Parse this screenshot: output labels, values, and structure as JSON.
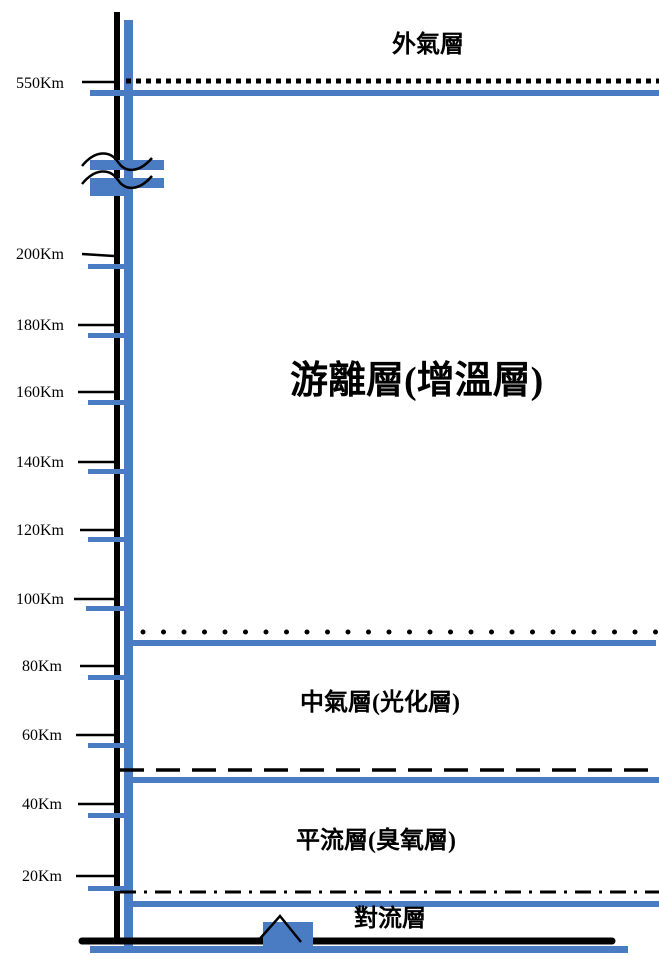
{
  "diagram": {
    "axis_labels": [
      "550Km",
      "200Km",
      "180Km",
      "160Km",
      "140Km",
      "120Km",
      "100Km",
      "80Km",
      "60Km",
      "40Km",
      "20Km"
    ],
    "layers": {
      "exosphere": "外氣層",
      "thermosphere": "游離層(增溫層)",
      "mesosphere": "中氣層(光化層)",
      "stratosphere": "平流層(臭氧層)",
      "troposphere": "對流層"
    },
    "colors": {
      "axis": "#000000",
      "band": "#4a7cc4"
    },
    "icons": {
      "axis_break": "axis-break-icon",
      "mountain": "mountain-icon"
    }
  }
}
